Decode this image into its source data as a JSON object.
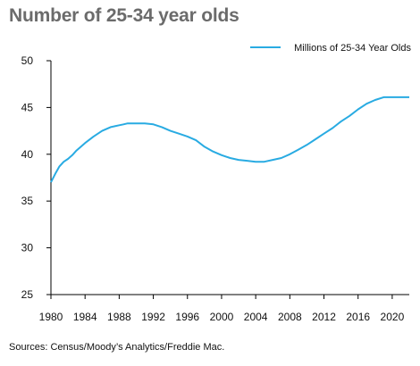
{
  "title": "Number of 25-34 year olds",
  "source": "Sources: Census/Moody’s Analytics/Freddie Mac.",
  "chart_data": {
    "type": "line",
    "title": "Number of 25-34 year olds",
    "xlabel": "",
    "ylabel": "",
    "xlim": [
      1980,
      2022
    ],
    "ylim": [
      25,
      50
    ],
    "x_ticks": [
      1980,
      1984,
      1988,
      1992,
      1996,
      2000,
      2004,
      2008,
      2012,
      2016,
      2020
    ],
    "y_ticks": [
      25,
      30,
      35,
      40,
      45,
      50
    ],
    "grid": false,
    "legend": "top-right",
    "series": [
      {
        "name": "Millions of 25-34 Year Olds",
        "color": "#29abe2",
        "x": [
          1980,
          1980.5,
          1981,
          1981.5,
          1982,
          1982.5,
          1983,
          1984,
          1985,
          1986,
          1987,
          1988,
          1988.5,
          1989,
          1990,
          1991,
          1992,
          1993,
          1994,
          1995,
          1996,
          1997,
          1998,
          1999,
          2000,
          2001,
          2002,
          2003,
          2004,
          2005,
          2006,
          2007,
          2008,
          2009,
          2010,
          2011,
          2012,
          2013,
          2014,
          2015,
          2016,
          2017,
          2018,
          2019,
          2020,
          2021,
          2022
        ],
        "y": [
          37.0,
          37.9,
          38.7,
          39.2,
          39.5,
          39.9,
          40.4,
          41.2,
          41.9,
          42.5,
          42.9,
          43.1,
          43.2,
          43.3,
          43.3,
          43.3,
          43.2,
          42.9,
          42.5,
          42.2,
          41.9,
          41.5,
          40.8,
          40.3,
          39.9,
          39.6,
          39.4,
          39.3,
          39.2,
          39.2,
          39.4,
          39.6,
          40.0,
          40.5,
          41.0,
          41.6,
          42.2,
          42.8,
          43.5,
          44.1,
          44.8,
          45.4,
          45.8,
          46.1,
          46.1,
          46.1,
          46.1
        ]
      }
    ]
  }
}
